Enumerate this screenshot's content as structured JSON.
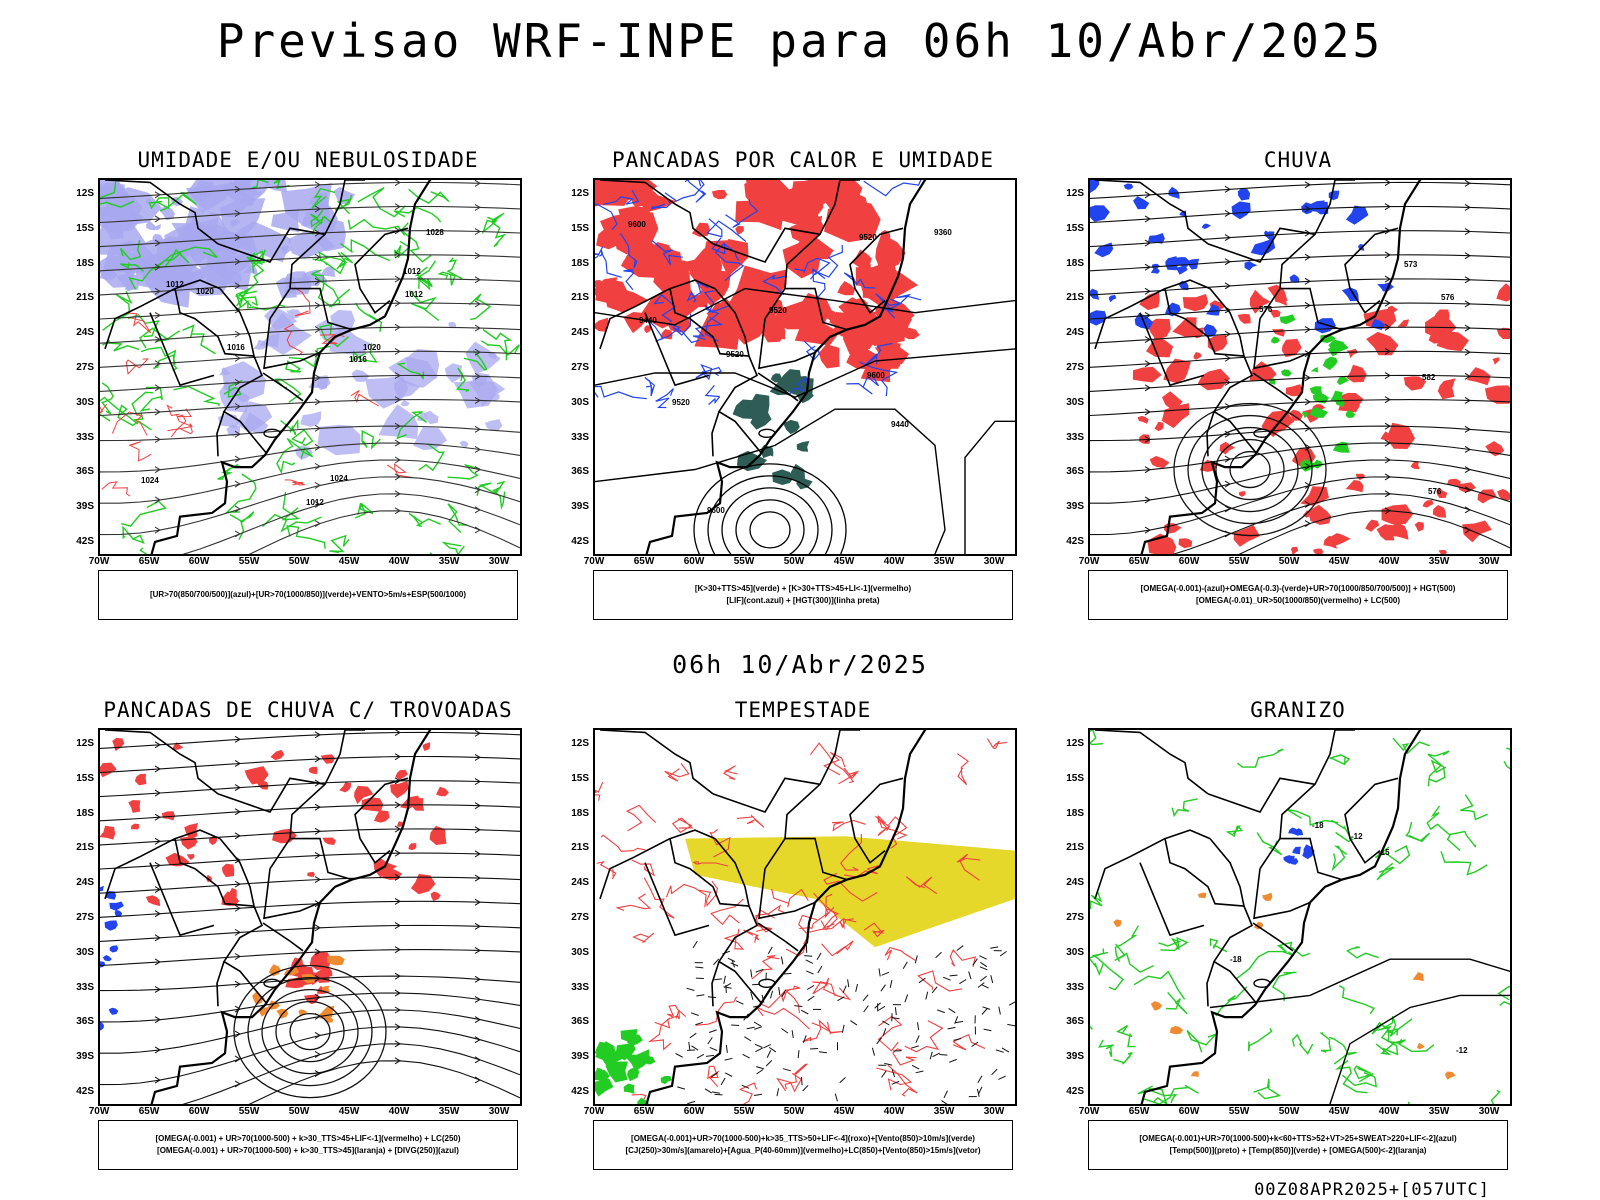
{
  "title": "Previsao WRF-INPE  para 06h 10/Abr/2025",
  "mid_title": "06h 10/Abr/2025",
  "footer": "00Z08APR2025+[057UTC]",
  "lat_labels": [
    "12S",
    "15S",
    "18S",
    "21S",
    "24S",
    "27S",
    "30S",
    "33S",
    "36S",
    "39S",
    "42S"
  ],
  "lon_labels": [
    "70W",
    "65W",
    "60W",
    "55W",
    "50W",
    "45W",
    "40W",
    "35W",
    "30W"
  ],
  "colors": {
    "red": "#f04040",
    "green": "#22cc22",
    "blue": "#2244ee",
    "lavender": "#a8a8f0",
    "darkgreen": "#2e5d55",
    "yellow": "#e6d82a",
    "orange": "#f08a30"
  },
  "panels": [
    {
      "title": "UMIDADE E/OU NEBULOSIDADE",
      "legend": [
        "[UR>70(850/700/500)](azul)+[UR>70(1000/850)](verde)+VENTO>5m/s+ESP(500/1000)"
      ],
      "contour_labels": [
        "1012",
        "1012",
        "1012",
        "1012",
        "1016",
        "1016",
        "1020",
        "1020",
        "1024",
        "1024",
        "1028"
      ]
    },
    {
      "title": "PANCADAS POR CALOR E UMIDADE",
      "legend": [
        "[K>30+TTS>45](verde) + [K>30+TTS>45+LI<-1](vermelho)",
        "[LIF](cont.azul) + [HGT(300)](linha preta)"
      ],
      "contour_labels": [
        "9600",
        "9600",
        "9520",
        "9600",
        "9520",
        "9520",
        "9520",
        "9440",
        "9440",
        "9360"
      ]
    },
    {
      "title": "CHUVA",
      "legend": [
        "[OMEGA(-0.001)-(azul)+OMEGA(-0.3)-(verde)+UR>70(1000/850/700/500)] + HGT(500)",
        "[OMEGA(-0.01)_UR>50(1000/850)(vermelho) + LC(500)"
      ],
      "contour_labels": [
        "582",
        "576",
        "576",
        "576",
        "573"
      ]
    },
    {
      "title": "PANCADAS DE CHUVA C/ TROVOADAS",
      "legend": [
        "[OMEGA(-0.001) + UR>70(1000-500) + k>30_TTS>45+LIF<-1](vermelho) + LC(250)",
        "[OMEGA(-0.001) + UR>70(1000-500) + k>30_TTS>45](laranja) + [DIVG(250)](azul)"
      ],
      "contour_labels": []
    },
    {
      "title": "TEMPESTADE",
      "legend": [
        "[OMEGA(-0.001)+UR>70(1000-500)+k>35_TTS>50+LIF<-4](roxo)+[Vento(850)>10m/s](verde)",
        "[CJ(250)>30m/s](amarelo)+[Agua_P(40-60mm)](vermelho)+LC(850)+[Vento(850)>15m/s](vetor)"
      ],
      "contour_labels": []
    },
    {
      "title": "GRANIZO",
      "legend": [
        "[OMEGA(-0.001)+UR>70(1000-500)+k<60+TTS>52+VT>25+SWEAT>220+LIF<-2](azul)",
        "[Temp(500)](preto) + [Temp(850)](verde) + [OMEGA(500)<-2](laranja)"
      ],
      "contour_labels": [
        "-12",
        "-12",
        "-18",
        "-15",
        "-18"
      ]
    }
  ]
}
